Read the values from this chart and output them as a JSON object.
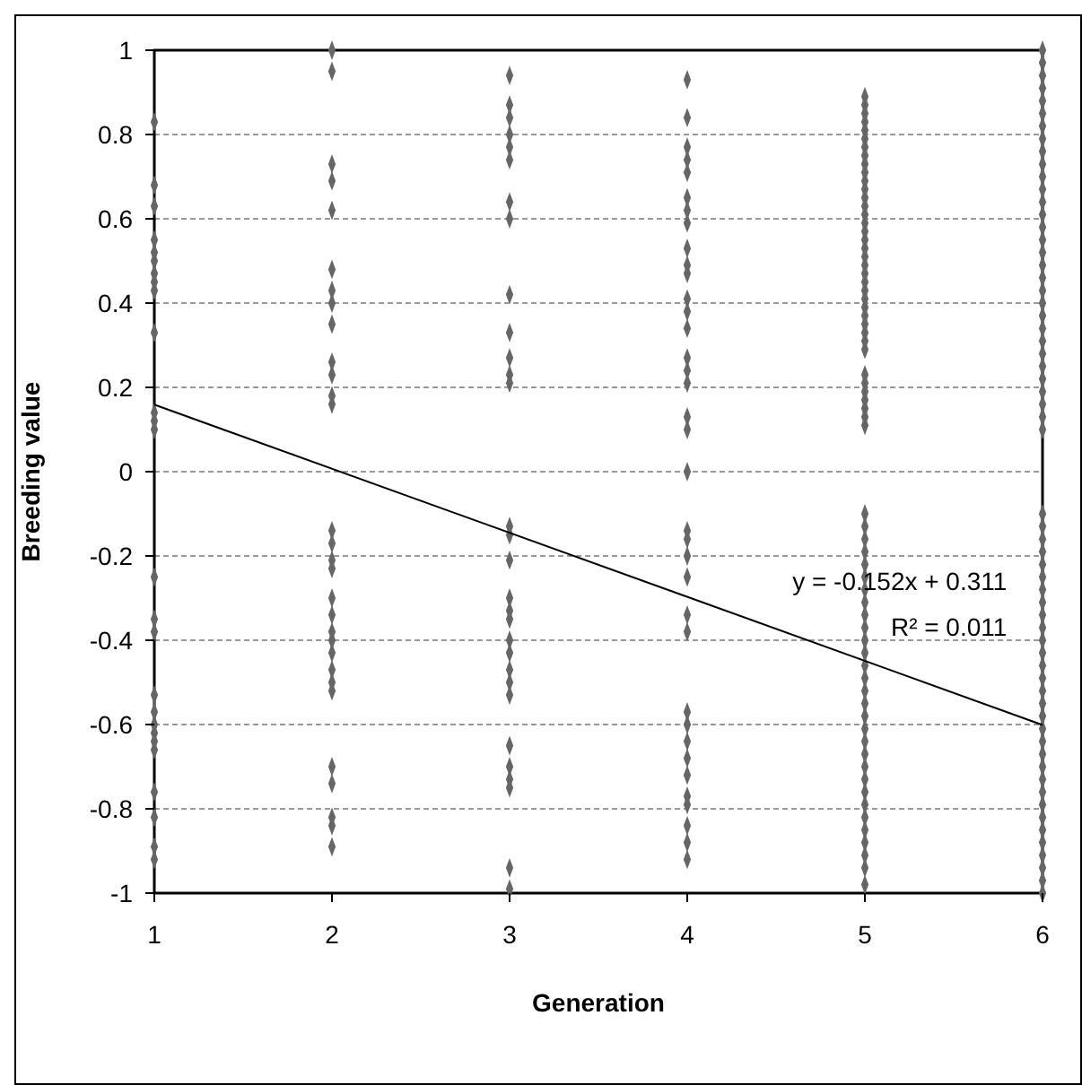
{
  "chart_data": {
    "type": "scatter",
    "xlabel": "Generation",
    "ylabel": "Breeding value",
    "xlim": [
      1,
      6
    ],
    "xticks": [
      1,
      2,
      3,
      4,
      5,
      6
    ],
    "ylim": [
      -1,
      1
    ],
    "yticks": [
      -1,
      -0.8,
      -0.6,
      -0.4,
      -0.2,
      0,
      0.2,
      0.4,
      0.6,
      0.8,
      1
    ],
    "grid": "y",
    "annotations": [
      "y = -0.152x + 0.311",
      "R² = 0.011"
    ],
    "series": [
      {
        "marker": "diamond",
        "color": "#666666",
        "x": [
          1,
          1,
          1,
          1,
          1,
          1,
          1,
          1,
          1,
          1,
          1,
          1,
          1,
          1,
          1,
          1,
          1,
          1,
          1,
          1,
          1,
          1,
          1,
          1,
          1,
          1,
          2,
          2,
          2,
          2,
          2,
          2,
          2,
          2,
          2,
          2,
          2,
          2,
          2,
          2,
          2,
          2,
          2,
          2,
          2,
          2,
          2,
          2,
          2,
          2,
          2,
          2,
          2,
          2,
          2,
          2,
          3,
          3,
          3,
          3,
          3,
          3,
          3,
          3,
          3,
          3,
          3,
          3,
          3,
          3,
          3,
          3,
          3,
          3,
          3,
          3,
          3,
          3,
          3,
          3,
          3,
          3,
          3,
          3,
          3,
          3,
          4,
          4,
          4,
          4,
          4,
          4,
          4,
          4,
          4,
          4,
          4,
          4,
          4,
          4,
          4,
          4,
          4,
          4,
          4,
          4,
          4,
          4,
          4,
          4,
          4,
          4,
          4,
          4,
          4,
          4,
          4,
          4,
          4,
          4,
          4,
          4
        ],
        "values": [
          0.83,
          0.68,
          0.63,
          0.55,
          0.52,
          0.5,
          0.47,
          0.45,
          0.43,
          0.33,
          0.14,
          0.12,
          0.1,
          -0.25,
          -0.35,
          -0.38,
          -0.53,
          -0.57,
          -0.6,
          -0.62,
          -0.66,
          -0.76,
          -0.82,
          -0.89,
          -0.92,
          -0.64,
          1.0,
          0.95,
          0.73,
          0.69,
          0.62,
          0.48,
          0.43,
          0.4,
          0.35,
          0.26,
          0.23,
          0.18,
          0.16,
          -0.14,
          -0.17,
          -0.21,
          -0.23,
          -0.3,
          -0.34,
          -0.38,
          -0.4,
          -0.43,
          -0.47,
          -0.5,
          -0.52,
          -0.7,
          -0.74,
          -0.82,
          -0.84,
          -0.89,
          0.94,
          0.87,
          0.84,
          0.8,
          0.77,
          0.74,
          0.64,
          0.6,
          0.42,
          0.33,
          0.27,
          0.23,
          0.21,
          -0.13,
          -0.15,
          -0.21,
          -0.3,
          -0.33,
          -0.35,
          -0.4,
          -0.43,
          -0.47,
          -0.5,
          -0.53,
          -0.65,
          -0.7,
          -0.73,
          -0.75,
          -0.94,
          -0.99,
          0.93,
          0.84,
          0.77,
          0.74,
          0.71,
          0.65,
          0.62,
          0.59,
          0.53,
          0.49,
          0.47,
          0.41,
          0.38,
          0.34,
          0.27,
          0.24,
          0.21,
          0.13,
          0.1,
          0,
          -0.14,
          -0.16,
          -0.2,
          -0.25,
          -0.34,
          -0.38,
          -0.57,
          -0.6,
          -0.64,
          -0.68,
          -0.72,
          -0.77,
          -0.79,
          -0.84,
          -0.88,
          -0.92
        ]
      },
      {
        "marker": "diamond",
        "color": "#666666",
        "x": [
          5,
          5,
          5,
          5,
          5,
          5,
          5,
          5,
          5,
          5,
          5,
          5,
          5,
          5,
          5,
          5,
          5,
          5,
          5,
          5,
          5,
          5,
          5,
          5,
          5,
          5,
          5,
          5,
          5,
          5,
          5,
          5,
          5,
          5,
          5,
          5,
          5,
          5,
          5,
          5,
          5,
          5,
          5,
          5,
          5,
          5,
          5,
          5,
          5,
          5,
          5,
          5,
          5,
          5,
          5,
          5,
          5,
          5,
          5,
          5,
          5,
          5,
          5,
          5,
          5,
          5,
          5,
          5
        ],
        "values": [
          0.89,
          0.87,
          0.85,
          0.83,
          0.81,
          0.79,
          0.77,
          0.75,
          0.73,
          0.71,
          0.69,
          0.67,
          0.65,
          0.63,
          0.61,
          0.59,
          0.57,
          0.55,
          0.53,
          0.51,
          0.49,
          0.47,
          0.45,
          0.43,
          0.41,
          0.39,
          0.37,
          0.35,
          0.33,
          0.31,
          0.29,
          0.23,
          0.21,
          0.19,
          0.17,
          0.15,
          0.13,
          0.11,
          -0.1,
          -0.13,
          -0.16,
          -0.19,
          -0.22,
          -0.25,
          -0.28,
          -0.31,
          -0.34,
          -0.37,
          -0.4,
          -0.43,
          -0.46,
          -0.49,
          -0.52,
          -0.55,
          -0.58,
          -0.61,
          -0.64,
          -0.67,
          -0.7,
          -0.73,
          -0.76,
          -0.79,
          -0.82,
          -0.85,
          -0.88,
          -0.91,
          -0.94,
          -0.98
        ]
      },
      {
        "marker": "diamond",
        "color": "#666666",
        "x": [
          6,
          6,
          6,
          6,
          6,
          6,
          6,
          6,
          6,
          6,
          6,
          6,
          6,
          6,
          6,
          6,
          6,
          6,
          6,
          6,
          6,
          6,
          6,
          6,
          6,
          6,
          6,
          6,
          6,
          6,
          6,
          6,
          6,
          6,
          6,
          6,
          6,
          6,
          6,
          6,
          6,
          6,
          6,
          6,
          6,
          6,
          6,
          6,
          6,
          6,
          6,
          6,
          6,
          6,
          6,
          6,
          6,
          6,
          6,
          6,
          6,
          6
        ],
        "values": [
          1.0,
          0.97,
          0.94,
          0.91,
          0.88,
          0.85,
          0.82,
          0.79,
          0.76,
          0.73,
          0.7,
          0.67,
          0.64,
          0.61,
          0.58,
          0.55,
          0.52,
          0.49,
          0.46,
          0.43,
          0.4,
          0.37,
          0.34,
          0.31,
          0.28,
          0.25,
          0.22,
          0.19,
          0.16,
          0.13,
          0.1,
          -0.1,
          -0.13,
          -0.16,
          -0.19,
          -0.22,
          -0.25,
          -0.28,
          -0.31,
          -0.34,
          -0.37,
          -0.4,
          -0.43,
          -0.46,
          -0.49,
          -0.52,
          -0.55,
          -0.58,
          -0.61,
          -0.64,
          -0.67,
          -0.7,
          -0.73,
          -0.76,
          -0.79,
          -0.82,
          -0.85,
          -0.88,
          -0.91,
          -0.94,
          -0.97,
          -1.0
        ]
      },
      {
        "type": "line",
        "color": "#000000",
        "x": [
          1,
          6
        ],
        "values": [
          0.159,
          -0.601
        ]
      }
    ]
  }
}
